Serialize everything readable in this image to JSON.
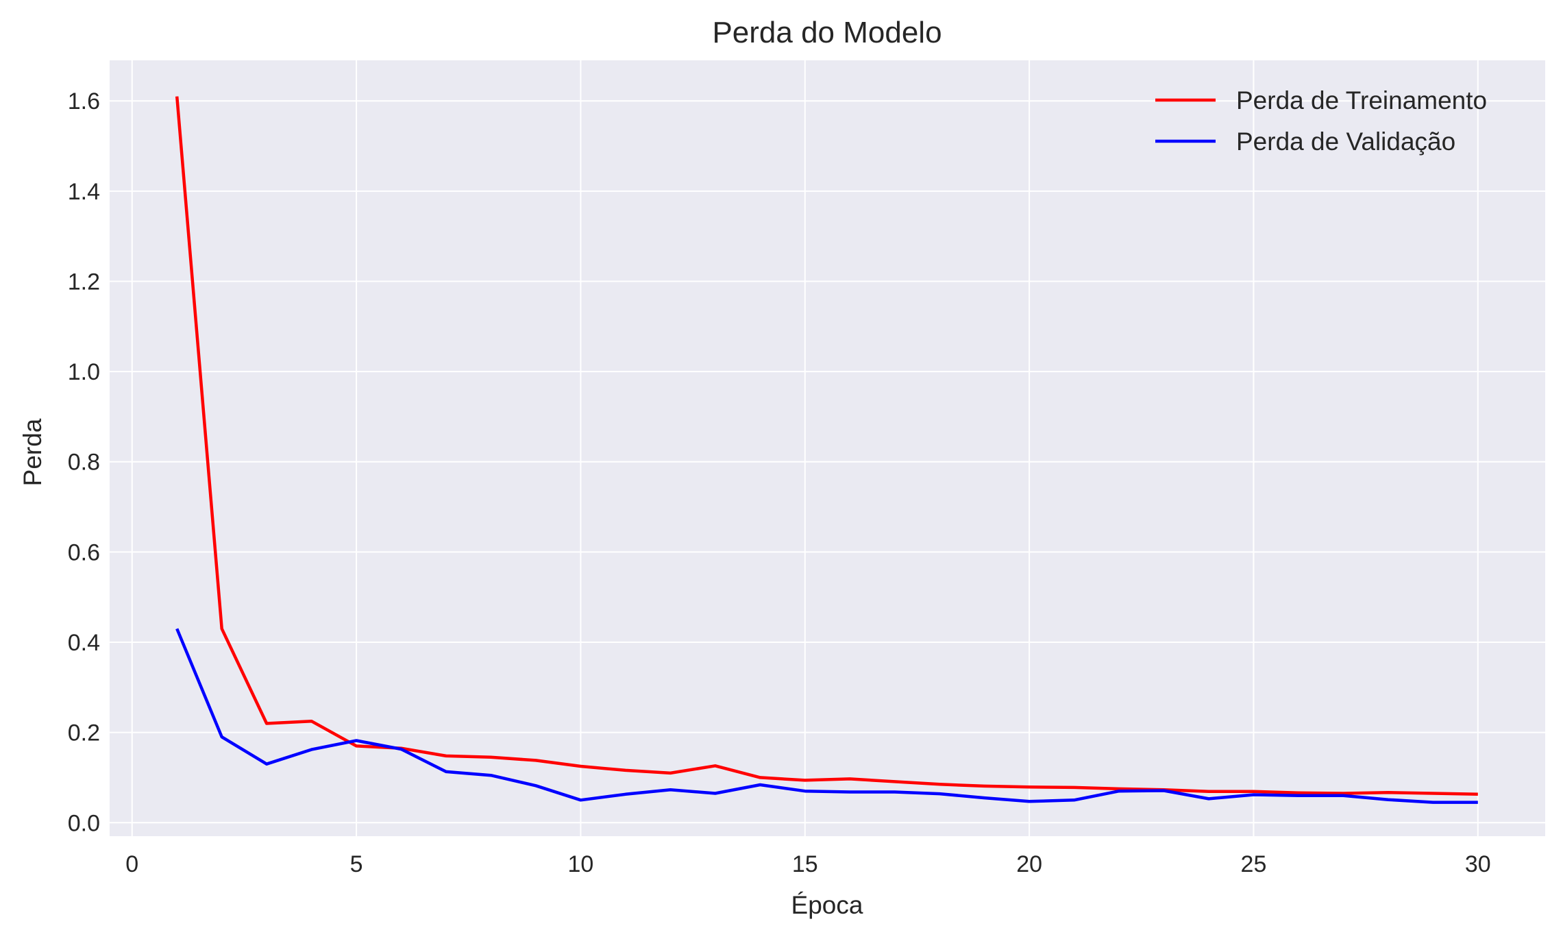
{
  "chart_data": {
    "type": "line",
    "title": "Perda do Modelo",
    "xlabel": "Época",
    "ylabel": "Perda",
    "xlim": [
      -0.5,
      31.5
    ],
    "ylim": [
      -0.03,
      1.69
    ],
    "xticks": [
      0,
      5,
      10,
      15,
      20,
      25,
      30
    ],
    "yticks": [
      0.0,
      0.2,
      0.4,
      0.6,
      0.8,
      1.0,
      1.2,
      1.4,
      1.6
    ],
    "ytick_labels": [
      "0.0",
      "0.2",
      "0.4",
      "0.6",
      "0.8",
      "1.0",
      "1.2",
      "1.4",
      "1.6"
    ],
    "grid": true,
    "legend_position": "top-right",
    "background": "#eaeaf2",
    "x": [
      1,
      2,
      3,
      4,
      5,
      6,
      7,
      8,
      9,
      10,
      11,
      12,
      13,
      14,
      15,
      16,
      17,
      18,
      19,
      20,
      21,
      22,
      23,
      24,
      25,
      26,
      27,
      28,
      29,
      30
    ],
    "series": [
      {
        "name": "Perda de Treinamento",
        "color": "#ff0000",
        "values": [
          1.61,
          0.43,
          0.22,
          0.225,
          0.17,
          0.165,
          0.148,
          0.145,
          0.138,
          0.125,
          0.116,
          0.11,
          0.126,
          0.1,
          0.094,
          0.097,
          0.091,
          0.085,
          0.081,
          0.079,
          0.078,
          0.075,
          0.073,
          0.069,
          0.069,
          0.066,
          0.065,
          0.067,
          0.065,
          0.063
        ]
      },
      {
        "name": "Perda de Validação",
        "color": "#0000ff",
        "values": [
          0.43,
          0.19,
          0.13,
          0.162,
          0.182,
          0.163,
          0.113,
          0.105,
          0.082,
          0.05,
          0.063,
          0.073,
          0.065,
          0.084,
          0.07,
          0.068,
          0.068,
          0.064,
          0.055,
          0.047,
          0.05,
          0.07,
          0.071,
          0.053,
          0.062,
          0.06,
          0.06,
          0.051,
          0.045,
          0.045
        ]
      }
    ]
  }
}
